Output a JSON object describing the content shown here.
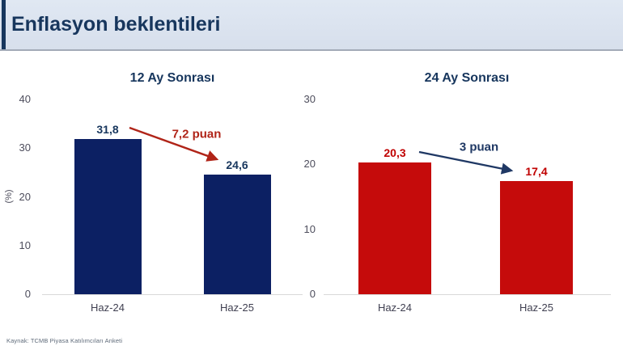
{
  "header": {
    "title": "Enflasyon beklentileri"
  },
  "footer": {
    "source": "Kaynak: TCMB Piyasa Katılımcıları Anketi"
  },
  "colors": {
    "header_bg": "#dce4f0",
    "header_accent": "#17365d",
    "title_text": "#17365d",
    "navy_bar": "#0c2063",
    "red_bar": "#c50b0b",
    "annotation_red": "#b02418",
    "annotation_navy": "#1f3864",
    "axis_line": "#d9d9d9",
    "tick_text": "#4d4d5c"
  },
  "chart_data": [
    {
      "type": "bar",
      "title": "12 Ay Sonrası",
      "categories": [
        "Haz-24",
        "Haz-25"
      ],
      "values": [
        31.8,
        24.6
      ],
      "value_labels": [
        "31,8",
        "24,6"
      ],
      "ylabel": "(%)",
      "xlabel": "",
      "ylim": [
        0,
        40
      ],
      "yticks": [
        0,
        10,
        20,
        30,
        40
      ],
      "grid": "off",
      "legend": "none",
      "bar_color": "#0c2063",
      "value_label_color": "#17365d",
      "annotation": {
        "text": "7,2 puan",
        "color": "#b02418",
        "meaning": "decrease of 7.2 points from Haz-24 to Haz-25"
      }
    },
    {
      "type": "bar",
      "title": "24 Ay Sonrası",
      "categories": [
        "Haz-24",
        "Haz-25"
      ],
      "values": [
        20.3,
        17.4
      ],
      "value_labels": [
        "20,3",
        "17,4"
      ],
      "ylabel": "",
      "xlabel": "",
      "ylim": [
        0,
        30
      ],
      "yticks": [
        0,
        10,
        20,
        30
      ],
      "grid": "off",
      "legend": "none",
      "bar_color": "#c50b0b",
      "value_label_color": "#c00000",
      "annotation": {
        "text": "3 puan",
        "color": "#1f3864",
        "meaning": "decrease of 3 points from Haz-24 to Haz-25"
      }
    }
  ]
}
